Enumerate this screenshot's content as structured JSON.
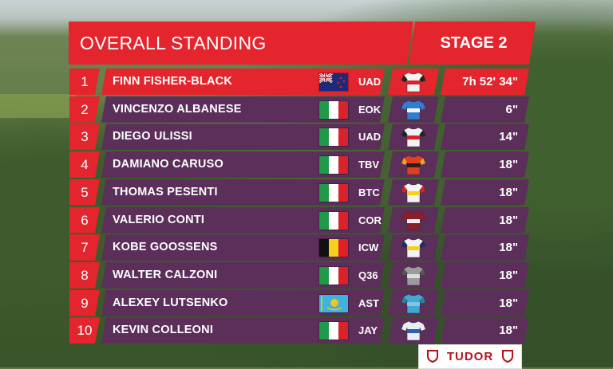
{
  "header": {
    "title": "OVERALL STANDING",
    "stage": "STAGE 2"
  },
  "sponsor": {
    "name": "TUDOR"
  },
  "colors": {
    "accent": "#e4252d",
    "row_bg": "#5c2e5a"
  },
  "riders": [
    {
      "pos": "1",
      "name": "FINN FISHER-BLACK",
      "flag": "new-zealand",
      "team": "UAD",
      "jersey": "uae-jersey",
      "time": "7h 52' 34\""
    },
    {
      "pos": "2",
      "name": "VINCENZO ALBANESE",
      "flag": "italy",
      "team": "EOK",
      "jersey": "eolo-jersey",
      "time": "6\""
    },
    {
      "pos": "3",
      "name": "DIEGO ULISSI",
      "flag": "italy",
      "team": "UAD",
      "jersey": "uae-jersey",
      "time": "14\""
    },
    {
      "pos": "4",
      "name": "DAMIANO CARUSO",
      "flag": "italy",
      "team": "TBV",
      "jersey": "bahrain-jersey",
      "time": "18\""
    },
    {
      "pos": "5",
      "name": "THOMAS PESENTI",
      "flag": "italy",
      "team": "BTC",
      "jersey": "beltrami-jersey",
      "time": "18\""
    },
    {
      "pos": "6",
      "name": "VALERIO CONTI",
      "flag": "italy",
      "team": "COR",
      "jersey": "corratec-jersey",
      "time": "18\""
    },
    {
      "pos": "7",
      "name": "KOBE GOOSSENS",
      "flag": "belgium",
      "team": "ICW",
      "jersey": "intermarche-jersey",
      "time": "18\""
    },
    {
      "pos": "8",
      "name": "WALTER CALZONI",
      "flag": "italy",
      "team": "Q36",
      "jersey": "q36-jersey",
      "time": "18\""
    },
    {
      "pos": "9",
      "name": "ALEXEY LUTSENKO",
      "flag": "kazakhstan",
      "team": "AST",
      "jersey": "astana-jersey",
      "time": "18\""
    },
    {
      "pos": "10",
      "name": "KEVIN COLLEONI",
      "flag": "italy",
      "team": "JAY",
      "jersey": "jayco-jersey",
      "time": "18\""
    }
  ]
}
